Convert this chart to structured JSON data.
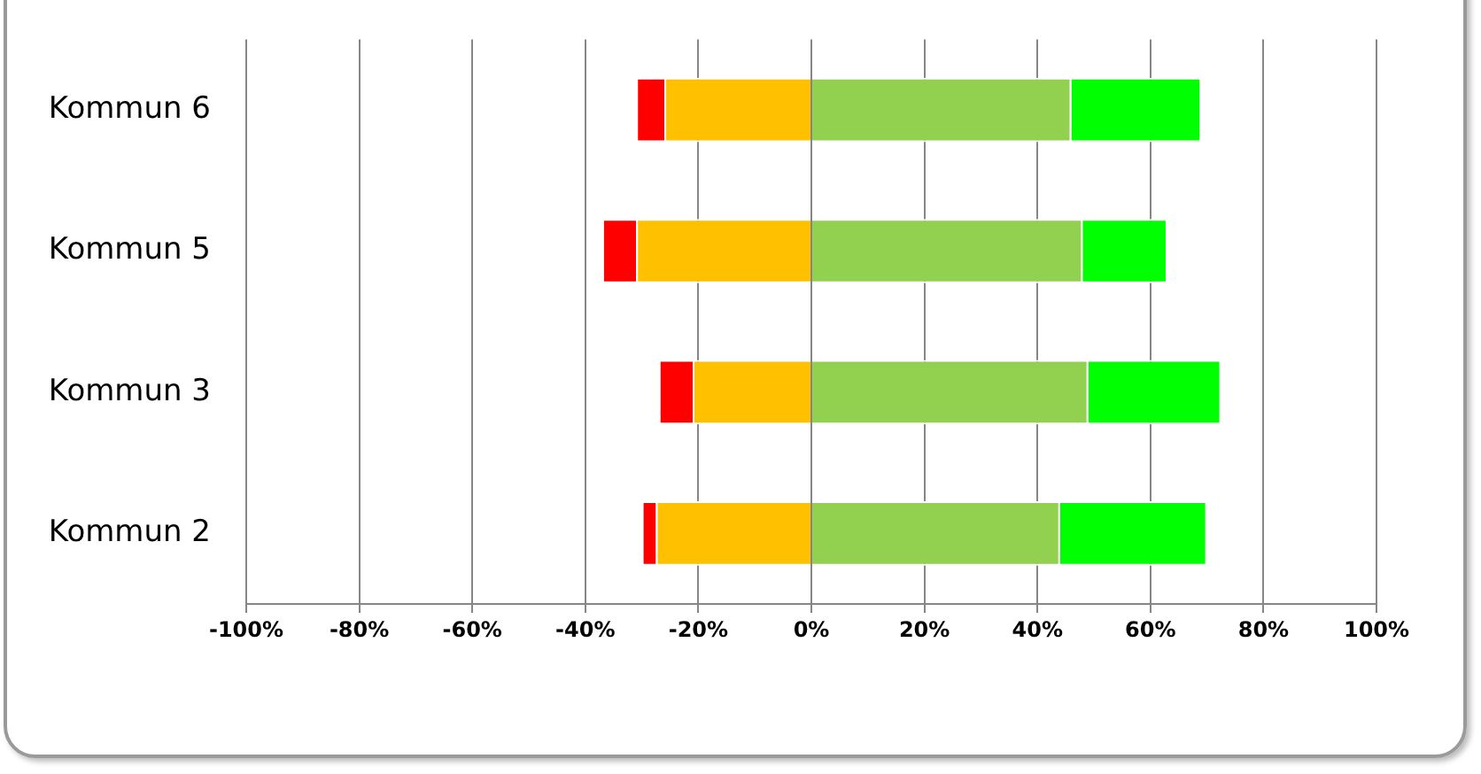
{
  "chart_data": {
    "type": "bar",
    "orientation": "horizontal",
    "stacked": true,
    "categories": [
      "Kommun 6",
      "Kommun 5",
      "Kommun 3",
      "Kommun 2"
    ],
    "series": [
      {
        "color": "#ffc000",
        "values": [
          -26,
          -31,
          -21,
          -27.5
        ]
      },
      {
        "color": "#ff0000",
        "values": [
          -5,
          -6,
          -6,
          -2.5
        ]
      },
      {
        "color": "#92d050",
        "values": [
          46,
          48,
          49,
          44
        ]
      },
      {
        "color": "#00ff00",
        "values": [
          23,
          15,
          23.5,
          26
        ]
      }
    ],
    "xlim": [
      -100,
      100
    ],
    "xticks": [
      {
        "value": -100,
        "label": "-100%"
      },
      {
        "value": -80,
        "label": "-80%"
      },
      {
        "value": -60,
        "label": "-60%"
      },
      {
        "value": -40,
        "label": "-40%"
      },
      {
        "value": -20,
        "label": "-20%"
      },
      {
        "value": 0,
        "label": "0%"
      },
      {
        "value": 20,
        "label": "20%"
      },
      {
        "value": 40,
        "label": "40%"
      },
      {
        "value": 60,
        "label": "60%"
      },
      {
        "value": 80,
        "label": "80%"
      },
      {
        "value": 100,
        "label": "100%"
      }
    ],
    "grid": "x",
    "legend": false
  }
}
